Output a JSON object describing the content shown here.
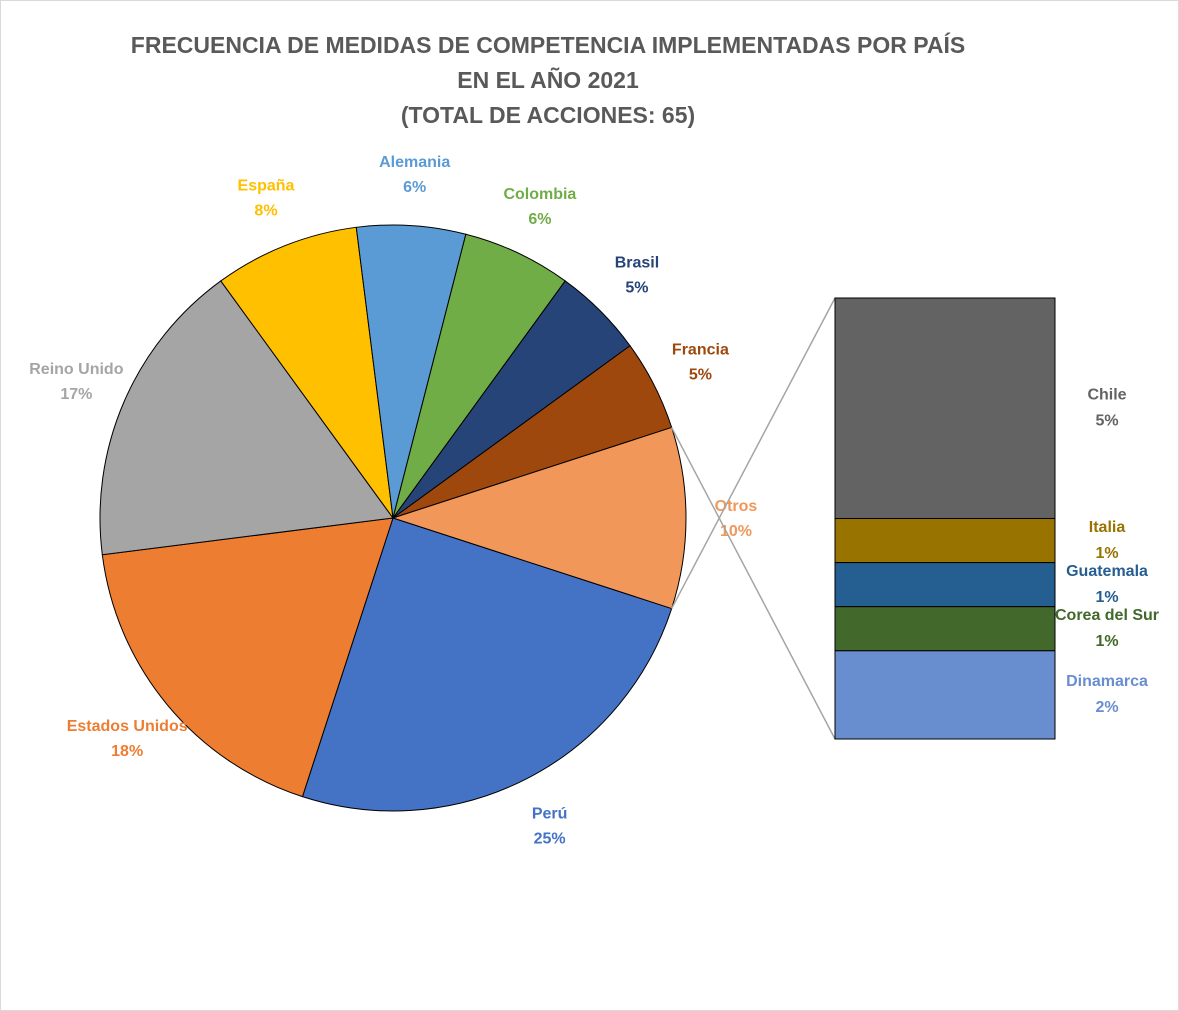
{
  "chart_data": {
    "type": "pie-of-bar",
    "title": [
      "FRECUENCIA DE MEDIDAS DE COMPETENCIA IMPLEMENTADAS POR PAÍS",
      "EN EL AÑO 2021",
      "(TOTAL DE ACCIONES: 65)"
    ],
    "categories": [
      "Perú",
      "Estados Unidos",
      "Reino Unido",
      "España",
      "Alemania",
      "Colombia",
      "Brasil",
      "Francia",
      "Otros"
    ],
    "values": [
      25,
      18,
      17,
      8,
      6,
      6,
      5,
      5,
      10
    ],
    "value_labels": [
      "25%",
      "18%",
      "17%",
      "8%",
      "6%",
      "6%",
      "5%",
      "5%",
      "10%"
    ],
    "colors": [
      "#4472c4",
      "#ed7d31",
      "#a5a5a5",
      "#ffc000",
      "#5b9bd5",
      "#70ad47",
      "#264478",
      "#9e480e",
      "#f1975a"
    ],
    "bar": {
      "categories": [
        "Chile",
        "Italia",
        "Guatemala",
        "Corea del Sur",
        "Dinamarca"
      ],
      "values": [
        5,
        1,
        1,
        1,
        2
      ],
      "value_labels": [
        "5%",
        "1%",
        "1%",
        "1%",
        "2%"
      ],
      "colors": [
        "#636363",
        "#997300",
        "#255e91",
        "#43682b",
        "#698ed0"
      ]
    }
  }
}
